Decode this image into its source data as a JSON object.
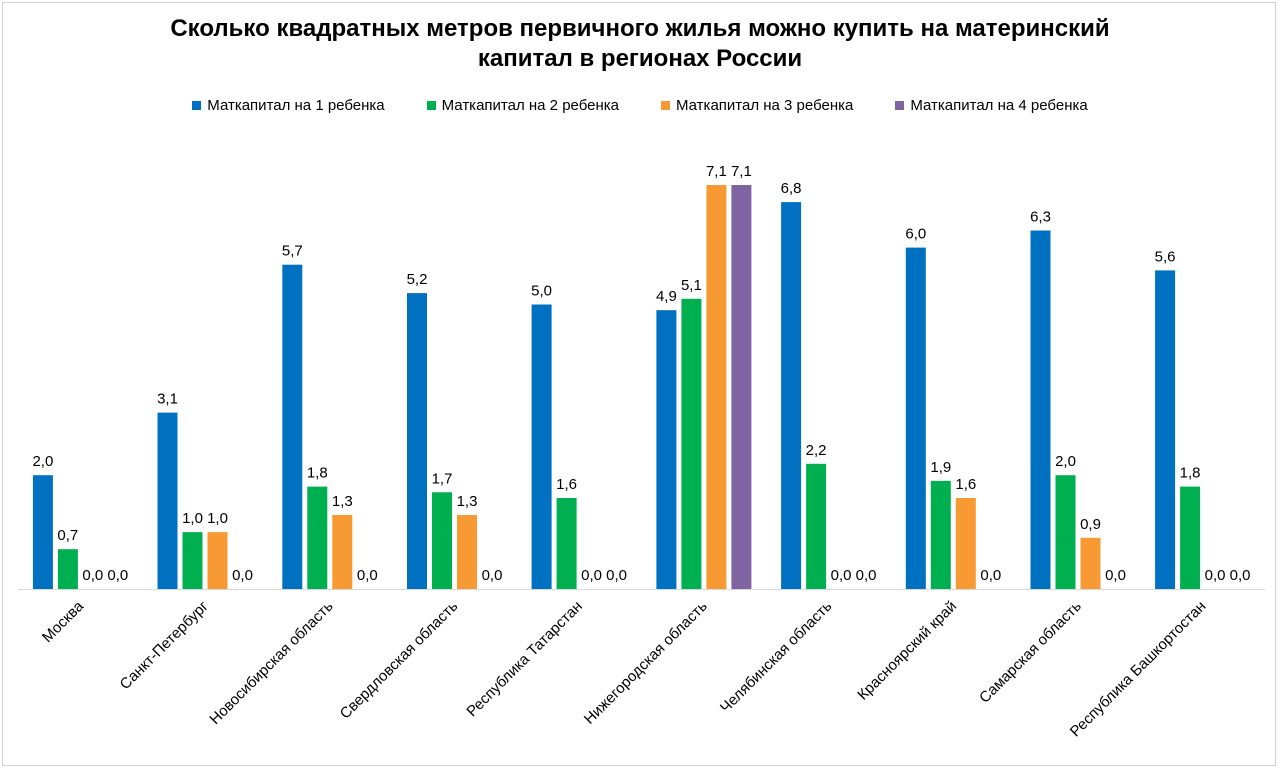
{
  "chart_data": {
    "type": "bar",
    "title": "Сколько квадратных метров первичного жилья можно купить на материнский капитал в регионах России",
    "title_lines": [
      "Сколько квадратных метров первичного жилья можно купить на материнский",
      "капитал в регионах России"
    ],
    "xlabel": "",
    "ylabel": "",
    "ylim": [
      0,
      8
    ],
    "grid": false,
    "legend_position": "top",
    "categories": [
      "Москва",
      "Санкт-Петербург",
      "Новосибирская область",
      "Свердловская область",
      "Республика Татарстан",
      "Нижегородская область",
      "Челябинская область",
      "Красноярский край",
      "Самарская область",
      "Республика Башкортостан"
    ],
    "series": [
      {
        "name": "Маткапитал на 1 ребенка",
        "color": "#0070C0",
        "values": [
          2.0,
          3.1,
          5.7,
          5.2,
          5.0,
          4.9,
          6.8,
          6.0,
          6.3,
          5.6
        ],
        "labels": [
          "2,0",
          "3,1",
          "5,7",
          "5,2",
          "5,0",
          "4,9",
          "6,8",
          "6,0",
          "6,3",
          "5,6"
        ]
      },
      {
        "name": "Маткапитал на 2 ребенка",
        "color": "#00B050",
        "values": [
          0.7,
          1.0,
          1.8,
          1.7,
          1.6,
          5.1,
          2.2,
          1.9,
          2.0,
          1.8
        ],
        "labels": [
          "0,7",
          "1,0",
          "1,8",
          "1,7",
          "1,6",
          "5,1",
          "2,2",
          "1,9",
          "2,0",
          "1,8"
        ]
      },
      {
        "name": "Маткапитал на 3 ребенка",
        "color": "#F79A34",
        "values": [
          0.0,
          1.0,
          1.3,
          1.3,
          0.0,
          7.1,
          0.0,
          1.6,
          0.9,
          0.0
        ],
        "labels": [
          "0,0",
          "1,0",
          "1,3",
          "1,3",
          "0,0",
          "7,1",
          "0,0",
          "1,6",
          "0,9",
          "0,0"
        ]
      },
      {
        "name": "Маткапитал на 4 ребенка",
        "color": "#8064A2",
        "values": [
          0.0,
          0.0,
          0.0,
          0.0,
          0.0,
          7.1,
          0.0,
          0.0,
          0.0,
          0.0
        ],
        "labels": [
          "0,0",
          "0,0",
          "0,0",
          "0,0",
          "0,0",
          "7,1",
          "0,0",
          "0,0",
          "0,0",
          "0,0"
        ]
      }
    ]
  }
}
